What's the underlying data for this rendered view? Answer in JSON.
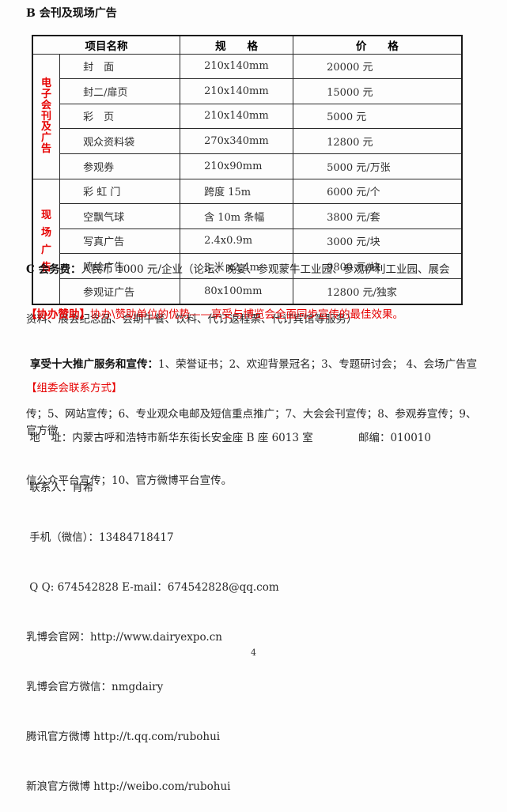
{
  "colors": {
    "accent_red": "#e60000",
    "border_black": "#1a1a1a"
  },
  "doc": {
    "title": "B 会刊及现场广告",
    "page_number": "4"
  },
  "table": {
    "header": {
      "name": "项目名称",
      "spec": "规　　格",
      "price": "价　　格"
    },
    "groups": [
      {
        "label": "电子会刊及广告",
        "rows": [
          {
            "name": "封　面",
            "spec": "210x140mm",
            "price": "20000 元"
          },
          {
            "name": "封二/扉页",
            "spec": "210x140mm",
            "price": "15000 元"
          },
          {
            "name": "彩　页",
            "spec": "210x140mm",
            "price": "5000 元"
          },
          {
            "name": "观众资料袋",
            "spec": "270x340mm",
            "price": "12800 元"
          },
          {
            "name": "参观券",
            "spec": "210x90mm",
            "price": "5000 元/万张"
          }
        ]
      },
      {
        "label": "现场广告",
        "rows": [
          {
            "name": "彩 虹 门",
            "spec": "跨度 15m",
            "price": "6000 元/个"
          },
          {
            "name": "空飘气球",
            "spec": "含 10m 条幅",
            "price": "3800 元/套"
          },
          {
            "name": "写真广告",
            "spec": "2.4x0.9m",
            "price": "3000 元/块"
          },
          {
            "name": "喷绘广告",
            "spec": "3 米 x2.4m",
            "price": "9800 元/块"
          },
          {
            "name": "参观证广告",
            "spec": "80x100mm",
            "price": "12800 元/独家"
          }
        ]
      }
    ]
  },
  "fees": {
    "label": "C 会务费：",
    "line1_rest": "人民币 1000 元/企业（论坛、晚宴、参观蒙牛工业园、参观伊利工业园、展会",
    "line2": "资料、展会纪念品、会期午餐、饮料、代订返程票、代订宾馆等服务）"
  },
  "sponsor": {
    "headline_bracket": "【协办赞助】",
    "headline_rest": "协办\\赞助单位的优势——享受与博览会全面同步宣传的最佳效果。",
    "promo_label": "享受十大推广服务和宣传：",
    "promo_line1_rest": "1、荣誉证书；2、欢迎背景冠名；3、专题研讨会； 4、会场广告宣",
    "promo_line2": "传；5、网站宣传；6、专业观众电邮及短信重点推广；7、大会会刊宣传；8、参观券宣传；9、官方微",
    "promo_line3": "信公众平台宣传；10、官方微博平台宣传。"
  },
  "contact": {
    "header": "【组委会联系方式】",
    "address": " 地　址：内蒙古呼和浩特市新华东街长安金座 B 座 6013 室",
    "postcode": "邮编：010010",
    "lines": [
      " 联系人：肖希",
      " 手机（微信）：13484718417",
      " Q Q: 674542828 E-mail：674542828@qq.com",
      "乳博会官网：http://www.dairyexpo.cn",
      "乳博会官方微信：nmgdairy",
      "腾讯官方微博 http://t.qq.com/rubohui",
      "新浪官方微博 http://weibo.com/rubohui"
    ]
  }
}
